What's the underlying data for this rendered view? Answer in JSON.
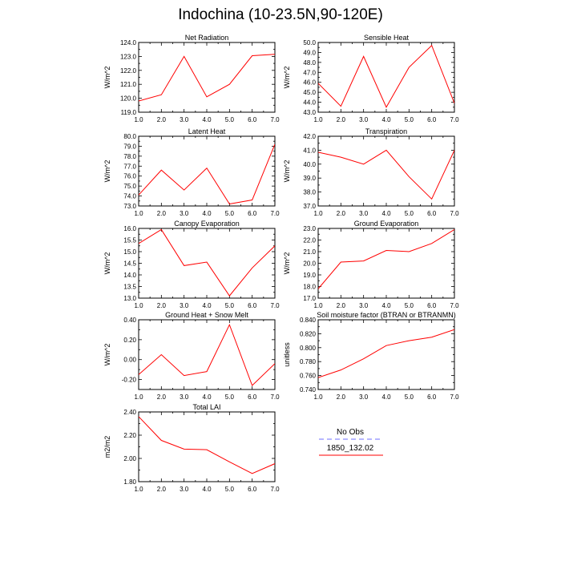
{
  "page": {
    "title": "Indochina (10-23.5N,90-120E)"
  },
  "legend": {
    "entries": [
      {
        "label": "No Obs",
        "color": "#8c8cff",
        "dash": true
      },
      {
        "label": "1850_132.02",
        "color": "#ff0000",
        "dash": false
      }
    ]
  },
  "chart_data": [
    {
      "type": "line",
      "title": "Net Radiation",
      "ylabel": "W/m^2",
      "x": [
        1,
        2,
        3,
        4,
        5,
        6,
        7
      ],
      "ylim": [
        119.0,
        124.0
      ],
      "yticks": [
        "119.0",
        "120.0",
        "121.0",
        "122.0",
        "123.0",
        "124.0"
      ],
      "series": [
        {
          "values": [
            119.8,
            120.25,
            123.0,
            120.1,
            121.0,
            123.05,
            123.15
          ]
        }
      ]
    },
    {
      "type": "line",
      "title": "Sensible Heat",
      "ylabel": "W/m^2",
      "x": [
        1,
        2,
        3,
        4,
        5,
        6,
        7
      ],
      "ylim": [
        43.0,
        50.0
      ],
      "yticks": [
        "43.0",
        "44.0",
        "45.0",
        "46.0",
        "47.0",
        "48.0",
        "49.0",
        "50.0"
      ],
      "series": [
        {
          "values": [
            45.9,
            43.6,
            48.6,
            43.5,
            47.5,
            49.7,
            43.9
          ]
        }
      ]
    },
    {
      "type": "line",
      "title": "Latent Heat",
      "ylabel": "W/m^2",
      "x": [
        1,
        2,
        3,
        4,
        5,
        6,
        7
      ],
      "ylim": [
        73.0,
        80.0
      ],
      "yticks": [
        "73.0",
        "74.0",
        "75.0",
        "76.0",
        "77.0",
        "78.0",
        "79.0",
        "80.0"
      ],
      "series": [
        {
          "values": [
            74.1,
            76.6,
            74.6,
            76.8,
            73.2,
            73.6,
            79.2
          ]
        }
      ]
    },
    {
      "type": "line",
      "title": "Transpiration",
      "ylabel": "W/m^2",
      "x": [
        1,
        2,
        3,
        4,
        5,
        6,
        7
      ],
      "ylim": [
        37.0,
        42.0
      ],
      "yticks": [
        "37.0",
        "38.0",
        "39.0",
        "40.0",
        "41.0",
        "42.0"
      ],
      "series": [
        {
          "values": [
            40.85,
            40.5,
            40.0,
            41.0,
            39.1,
            37.5,
            41.0
          ]
        }
      ]
    },
    {
      "type": "line",
      "title": "Canopy Evaporation",
      "ylabel": "W/m^2",
      "x": [
        1,
        2,
        3,
        4,
        5,
        6,
        7
      ],
      "ylim": [
        13.0,
        16.0
      ],
      "yticks": [
        "13.0",
        "13.5",
        "14.0",
        "14.5",
        "15.0",
        "15.5",
        "16.0"
      ],
      "series": [
        {
          "values": [
            15.35,
            15.95,
            14.4,
            14.55,
            13.1,
            14.3,
            15.25
          ]
        }
      ]
    },
    {
      "type": "line",
      "title": "Ground Evaporation",
      "ylabel": "W/m^2",
      "x": [
        1,
        2,
        3,
        4,
        5,
        6,
        7
      ],
      "ylim": [
        17.0,
        23.0
      ],
      "yticks": [
        "17.0",
        "18.0",
        "19.0",
        "20.0",
        "21.0",
        "22.0",
        "23.0"
      ],
      "series": [
        {
          "values": [
            17.8,
            20.1,
            20.2,
            21.1,
            21.0,
            21.7,
            22.9
          ]
        }
      ]
    },
    {
      "type": "line",
      "title": "Ground Heat + Snow Melt",
      "ylabel": "W/m^2",
      "x": [
        1,
        2,
        3,
        4,
        5,
        6,
        7
      ],
      "ylim": [
        -0.3,
        0.4
      ],
      "yticks": [
        "-0.20",
        "0.00",
        "0.20",
        "0.40"
      ],
      "ytick_values": [
        -0.2,
        0.0,
        0.2,
        0.4
      ],
      "series": [
        {
          "values": [
            -0.15,
            0.05,
            -0.16,
            -0.12,
            0.35,
            -0.26,
            -0.04
          ]
        }
      ]
    },
    {
      "type": "line",
      "title": "Soil moisture factor (BTRAN or BTRANMN)",
      "ylabel": "unitless",
      "x": [
        1,
        2,
        3,
        4,
        5,
        6,
        7
      ],
      "ylim": [
        0.74,
        0.84
      ],
      "yticks": [
        "0.740",
        "0.760",
        "0.780",
        "0.800",
        "0.820",
        "0.840"
      ],
      "series": [
        {
          "values": [
            0.757,
            0.768,
            0.784,
            0.803,
            0.81,
            0.815,
            0.826
          ]
        }
      ]
    },
    {
      "type": "line",
      "title": "Total LAI",
      "ylabel": "m2/m2",
      "x": [
        1,
        2,
        3,
        4,
        5,
        6,
        7
      ],
      "ylim": [
        1.8,
        2.4
      ],
      "yticks": [
        "1.80",
        "2.00",
        "2.20",
        "2.40"
      ],
      "ytick_values": [
        1.8,
        2.0,
        2.2,
        2.4
      ],
      "series": [
        {
          "values": [
            2.36,
            2.155,
            2.08,
            2.075,
            1.97,
            1.87,
            1.955
          ]
        }
      ]
    }
  ],
  "xticks": [
    "1.0",
    "2.0",
    "3.0",
    "4.0",
    "5.0",
    "6.0",
    "7.0"
  ]
}
